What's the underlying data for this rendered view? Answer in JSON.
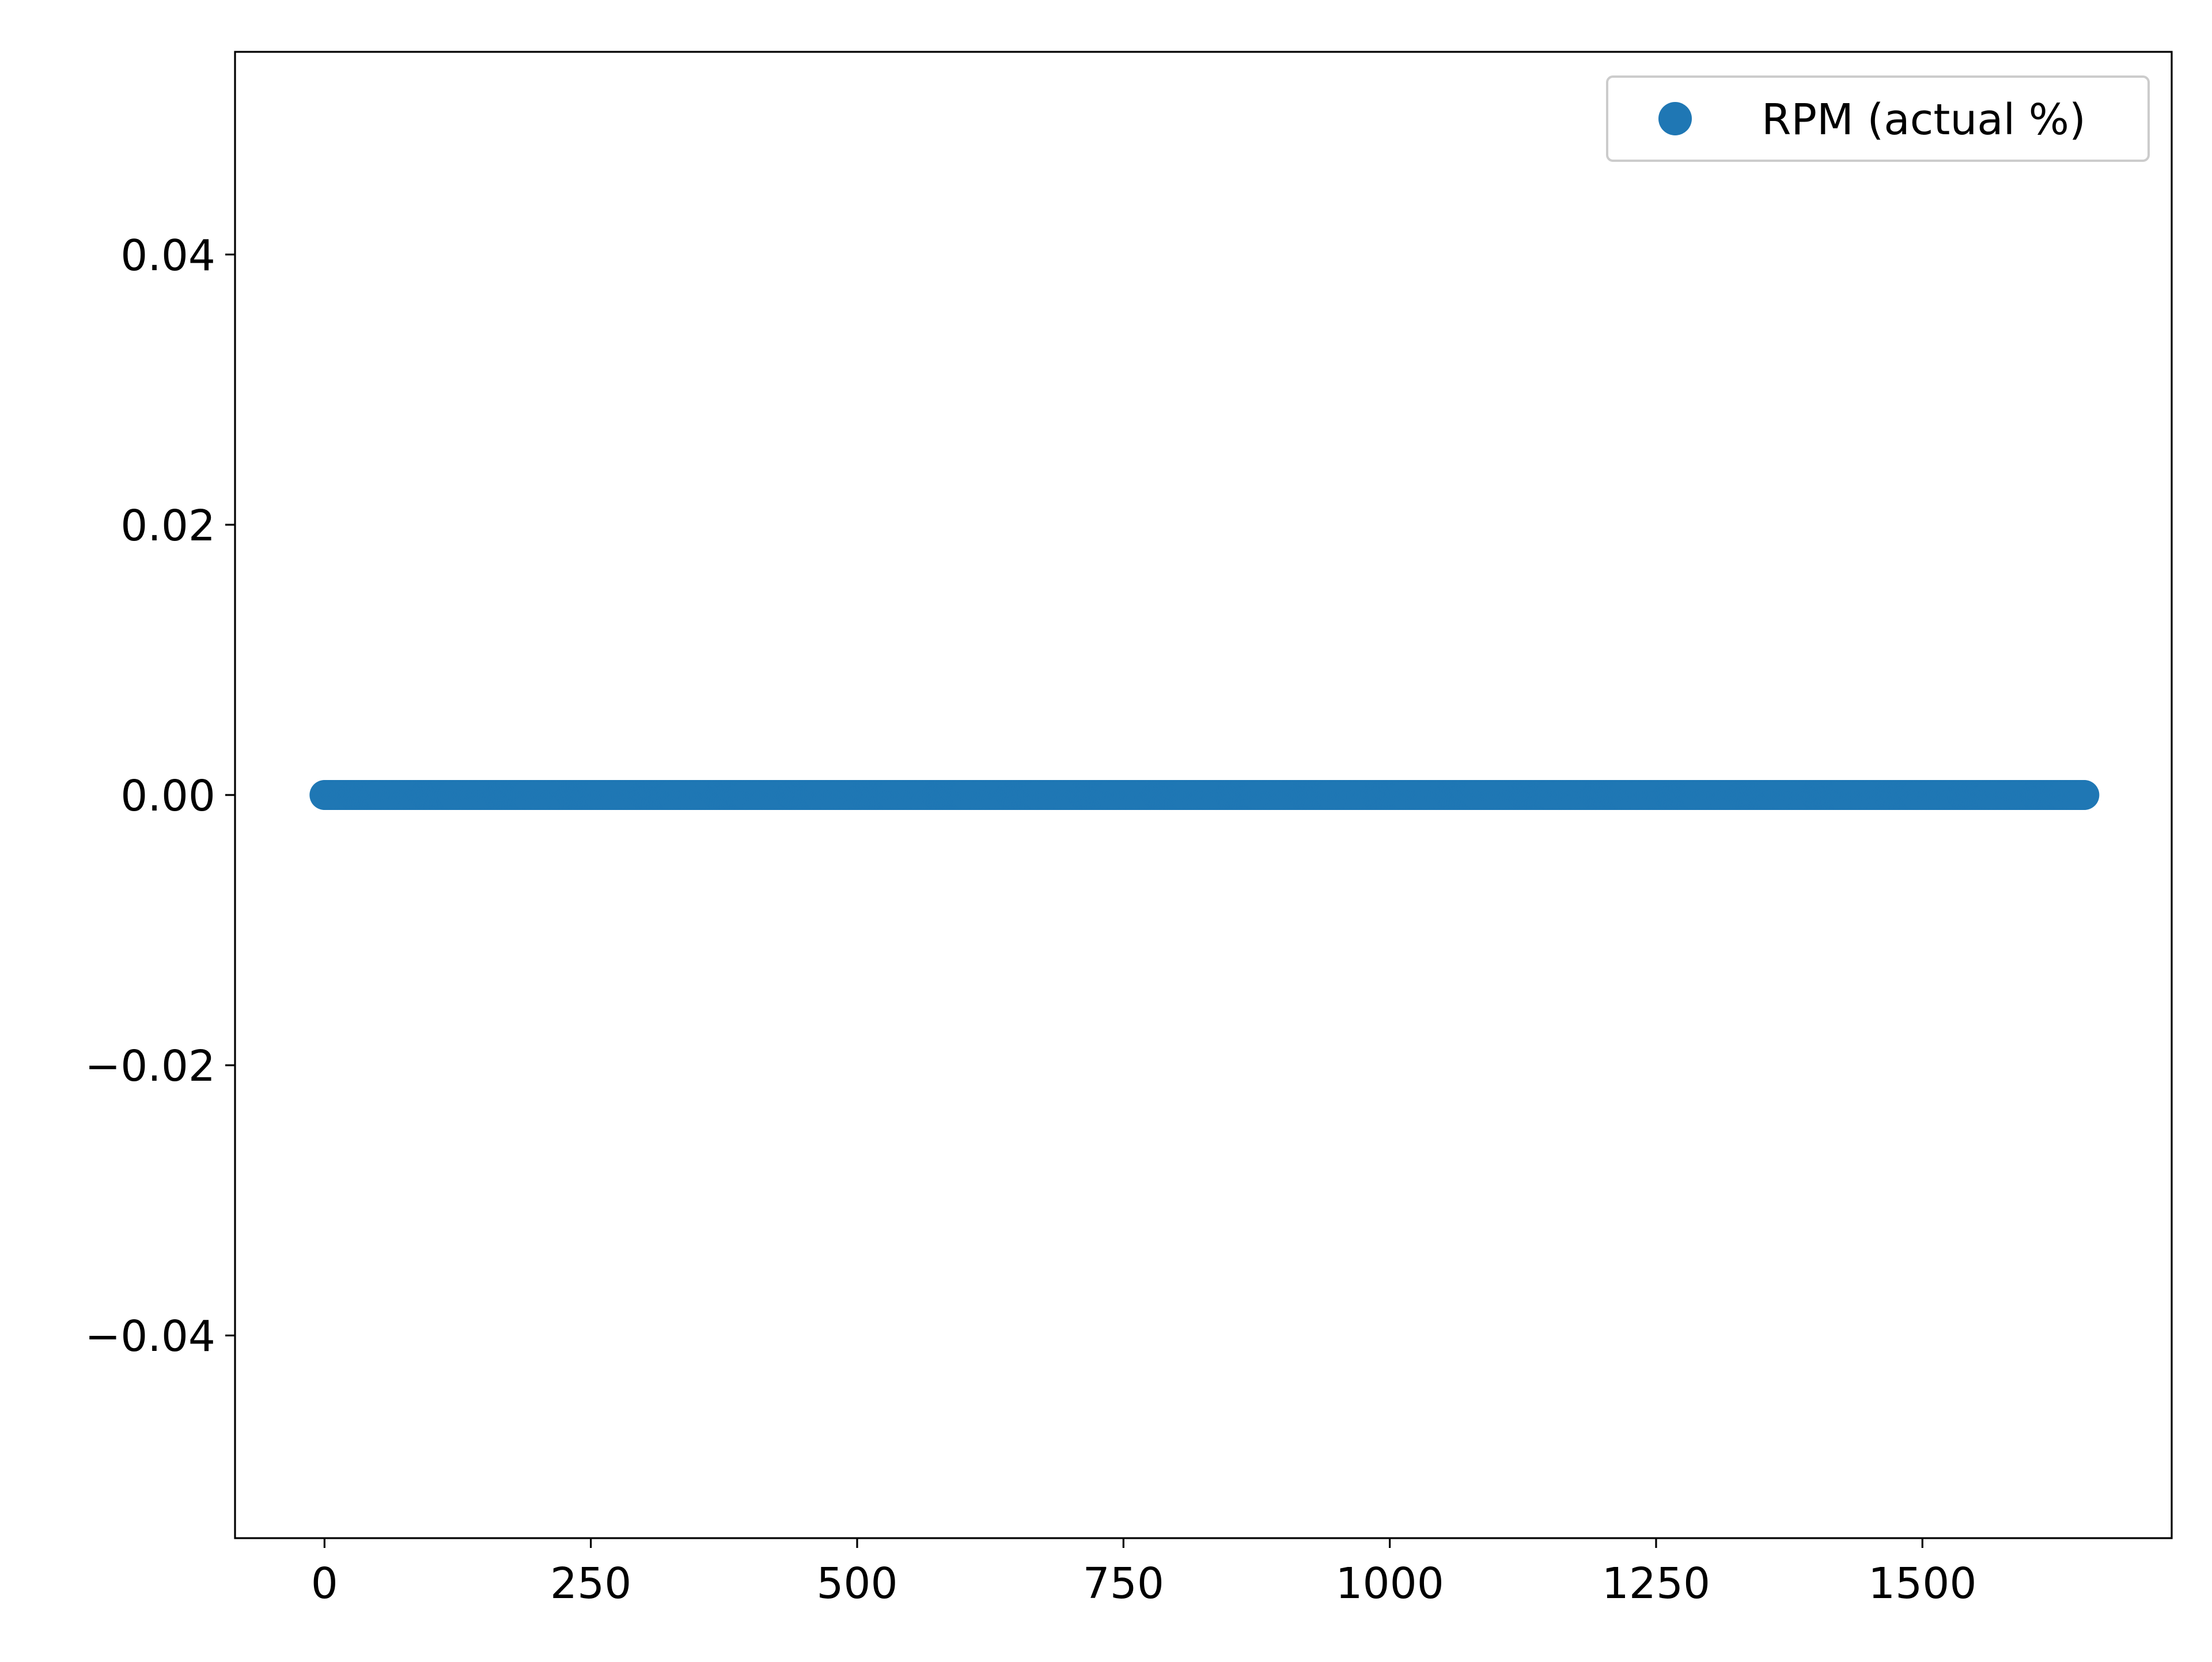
{
  "chart_data": {
    "type": "scatter",
    "title": "",
    "xlabel": "",
    "ylabel": "",
    "xlim": [
      -84,
      1734
    ],
    "ylim": [
      -0.055,
      0.055
    ],
    "x_ticks": [
      0,
      250,
      500,
      750,
      1000,
      1250,
      1500
    ],
    "x_tick_labels": [
      "0",
      "250",
      "500",
      "750",
      "1000",
      "1250",
      "1500"
    ],
    "y_ticks": [
      0.04,
      0.02,
      0.0,
      -0.02,
      -0.04
    ],
    "y_tick_labels": [
      "0.04",
      "0.02",
      "0.00",
      "−0.02",
      "−0.04"
    ],
    "grid": false,
    "legend": {
      "position": "upper right",
      "entries": [
        "RPM (actual %)"
      ]
    },
    "series": [
      {
        "name": "RPM (actual %)",
        "color": "#1f77b4",
        "marker": "circle",
        "x_range": [
          0,
          1652
        ],
        "x_step": 1,
        "y_value": 0.0
      }
    ]
  }
}
